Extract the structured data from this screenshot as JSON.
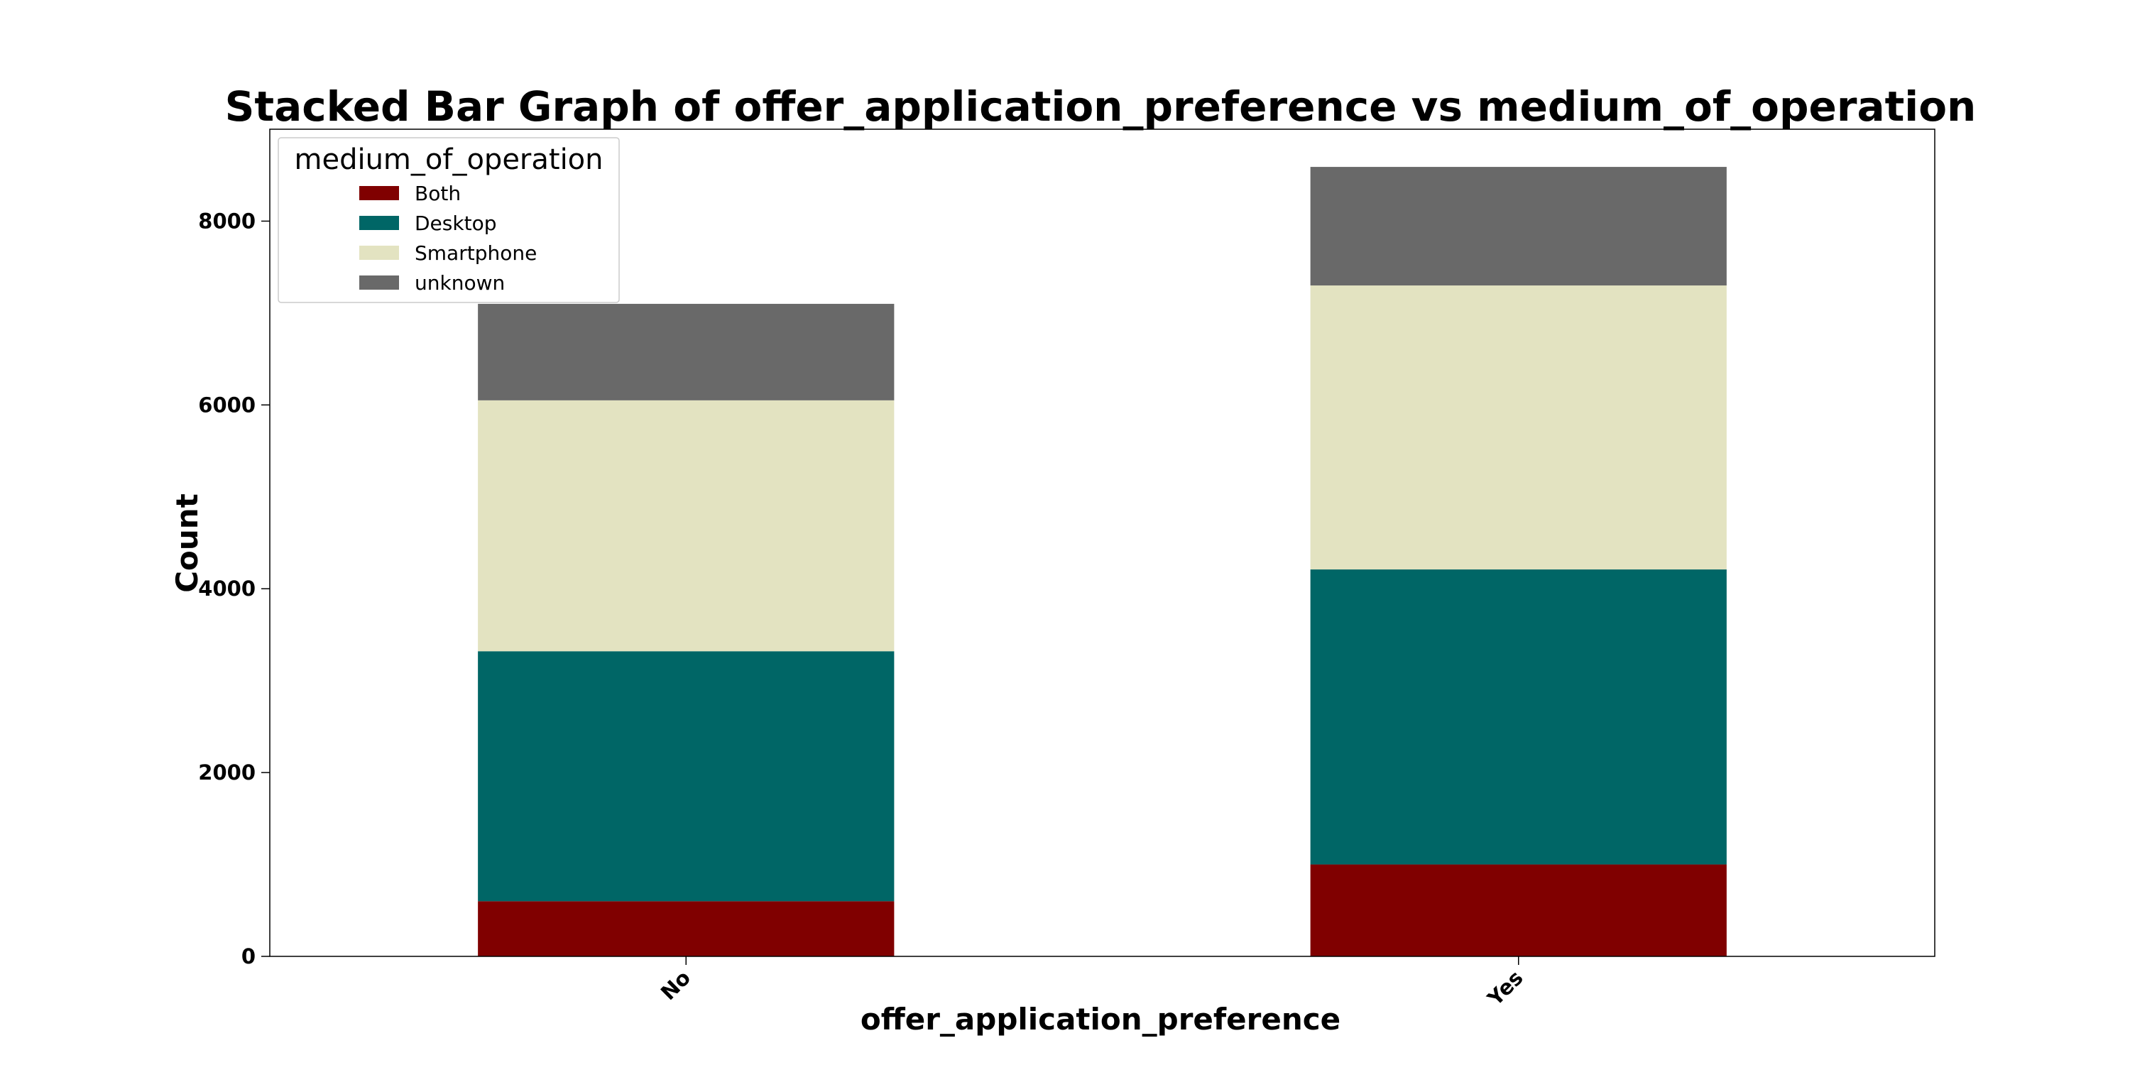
{
  "chart_data": {
    "type": "bar",
    "stacked": true,
    "title": "Stacked Bar Graph of offer_application_preference vs medium_of_operation",
    "xlabel": "offer_application_preference",
    "ylabel": "Count",
    "categories": [
      "No",
      "Yes"
    ],
    "series": [
      {
        "name": "Both",
        "color": "#800000",
        "values": [
          600,
          1000
        ]
      },
      {
        "name": "Desktop",
        "color": "#006666",
        "values": [
          2720,
          3210
        ]
      },
      {
        "name": "Smartphone",
        "color": "#e3e3c1",
        "values": [
          2730,
          3090
        ]
      },
      {
        "name": "unknown",
        "color": "#696969",
        "values": [
          1050,
          1290
        ]
      }
    ],
    "ylim": [
      0,
      9000
    ],
    "yticks": [
      0,
      2000,
      4000,
      6000,
      8000
    ],
    "grid": false,
    "legend": {
      "title": "medium_of_operation",
      "position": "top-left"
    }
  }
}
